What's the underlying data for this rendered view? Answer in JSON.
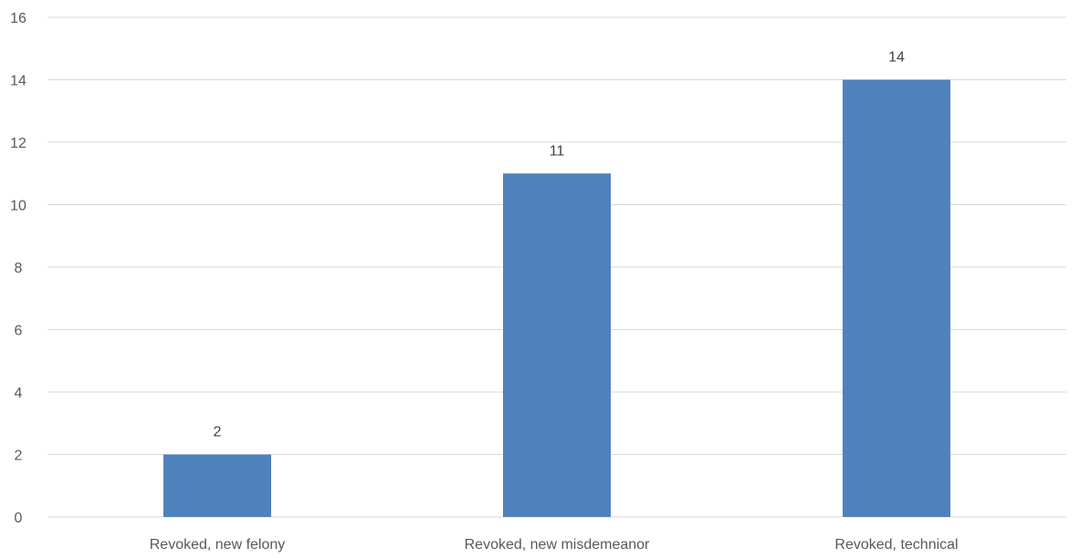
{
  "chart_data": {
    "type": "bar",
    "categories": [
      "Revoked, new felony",
      "Revoked, new misdemeanor",
      "Revoked, technical"
    ],
    "series": [
      {
        "values": [
          2,
          11,
          14
        ],
        "color": "#4f81bd"
      }
    ],
    "data_labels": [
      "2",
      "11",
      "14"
    ],
    "yticks": [
      0,
      2,
      4,
      6,
      8,
      10,
      12,
      14,
      16
    ],
    "ylim": [
      0,
      16
    ],
    "grid": true,
    "legend": "none",
    "title": "",
    "xlabel": "",
    "ylabel": ""
  }
}
